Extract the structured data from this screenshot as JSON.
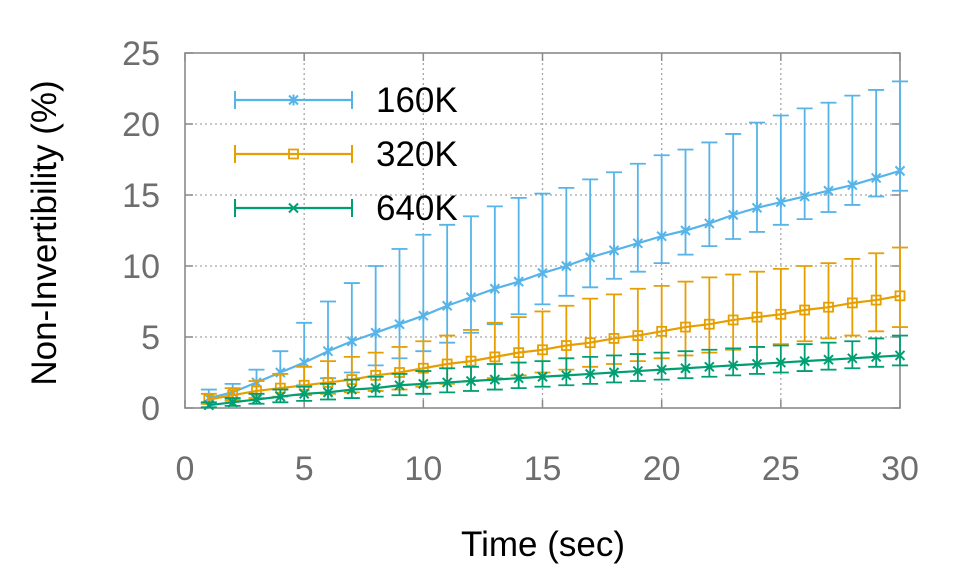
{
  "chart_data": {
    "type": "line",
    "title": "",
    "xlabel": "Time (sec)",
    "ylabel": "Non-Invertibility (%)",
    "xlim": [
      0,
      30
    ],
    "ylim": [
      0,
      25
    ],
    "xticks": [
      0,
      5,
      10,
      15,
      20,
      25,
      30
    ],
    "yticks": [
      0,
      5,
      10,
      15,
      20,
      25
    ],
    "grid": true,
    "legend_position": "top-left",
    "error_bars": true,
    "x": [
      1,
      2,
      3,
      4,
      5,
      6,
      7,
      8,
      9,
      10,
      11,
      12,
      13,
      14,
      15,
      16,
      17,
      18,
      19,
      20,
      21,
      22,
      23,
      24,
      25,
      26,
      27,
      28,
      29,
      30
    ],
    "series": [
      {
        "name": "160K",
        "color": "#56b4e9",
        "marker": "asterisk",
        "values": [
          0.7,
          1.1,
          1.8,
          2.5,
          3.2,
          4.0,
          4.7,
          5.3,
          5.9,
          6.5,
          7.2,
          7.8,
          8.4,
          8.9,
          9.5,
          10.0,
          10.6,
          11.1,
          11.6,
          12.1,
          12.5,
          13.0,
          13.6,
          14.1,
          14.5,
          14.9,
          15.3,
          15.7,
          16.2,
          16.7
        ],
        "upper": [
          1.3,
          1.7,
          2.7,
          4.0,
          6.0,
          7.5,
          8.8,
          10.0,
          11.2,
          12.2,
          12.9,
          13.5,
          14.2,
          14.8,
          15.1,
          15.5,
          16.1,
          16.6,
          17.2,
          17.8,
          18.2,
          18.7,
          19.3,
          20.1,
          20.6,
          21.1,
          21.5,
          22.0,
          22.4,
          23.0
        ],
        "lower": [
          0.3,
          0.6,
          1.0,
          1.3,
          1.6,
          2.1,
          2.5,
          3.0,
          3.5,
          4.0,
          4.6,
          5.3,
          5.9,
          6.6,
          7.3,
          7.9,
          8.5,
          9.1,
          9.6,
          10.2,
          10.8,
          11.4,
          11.9,
          12.4,
          12.9,
          13.3,
          13.8,
          14.3,
          14.9,
          15.3
        ]
      },
      {
        "name": "320K",
        "color": "#e69f00",
        "marker": "square",
        "values": [
          0.6,
          0.9,
          1.2,
          1.4,
          1.6,
          1.8,
          2.0,
          2.3,
          2.5,
          2.8,
          3.1,
          3.3,
          3.6,
          3.9,
          4.1,
          4.4,
          4.6,
          4.9,
          5.1,
          5.4,
          5.7,
          5.9,
          6.2,
          6.4,
          6.6,
          6.9,
          7.1,
          7.4,
          7.6,
          7.9
        ],
        "upper": [
          1.0,
          1.4,
          1.9,
          2.4,
          2.9,
          3.3,
          3.6,
          3.9,
          4.3,
          4.7,
          5.1,
          5.5,
          6.0,
          6.4,
          6.8,
          7.2,
          7.7,
          8.0,
          8.4,
          8.6,
          8.9,
          9.2,
          9.4,
          9.6,
          9.8,
          10.0,
          10.2,
          10.5,
          10.9,
          11.3
        ],
        "lower": [
          0.3,
          0.5,
          0.7,
          0.8,
          0.9,
          1.0,
          1.1,
          1.2,
          1.3,
          1.5,
          1.7,
          1.9,
          2.1,
          2.3,
          2.5,
          2.7,
          2.9,
          3.1,
          3.3,
          3.5,
          3.7,
          3.9,
          4.1,
          4.3,
          4.5,
          4.7,
          4.9,
          5.1,
          5.4,
          5.7
        ]
      },
      {
        "name": "640K",
        "color": "#009e73",
        "marker": "cross",
        "values": [
          0.2,
          0.4,
          0.6,
          0.8,
          1.0,
          1.1,
          1.3,
          1.4,
          1.6,
          1.7,
          1.8,
          1.9,
          2.0,
          2.1,
          2.2,
          2.3,
          2.4,
          2.5,
          2.6,
          2.7,
          2.8,
          2.9,
          3.0,
          3.1,
          3.2,
          3.3,
          3.4,
          3.5,
          3.6,
          3.7
        ],
        "upper": [
          0.4,
          0.7,
          1.0,
          1.3,
          1.5,
          1.7,
          2.0,
          2.2,
          2.4,
          2.6,
          2.8,
          2.9,
          3.1,
          3.2,
          3.3,
          3.5,
          3.6,
          3.7,
          3.8,
          3.9,
          4.0,
          4.1,
          4.2,
          4.3,
          4.4,
          4.5,
          4.6,
          4.7,
          4.9,
          5.1
        ],
        "lower": [
          0.05,
          0.15,
          0.3,
          0.4,
          0.5,
          0.6,
          0.7,
          0.8,
          0.9,
          1.0,
          1.1,
          1.2,
          1.3,
          1.4,
          1.5,
          1.6,
          1.7,
          1.8,
          1.9,
          2.0,
          2.1,
          2.2,
          2.3,
          2.4,
          2.5,
          2.6,
          2.7,
          2.8,
          2.9,
          3.0
        ]
      }
    ]
  }
}
